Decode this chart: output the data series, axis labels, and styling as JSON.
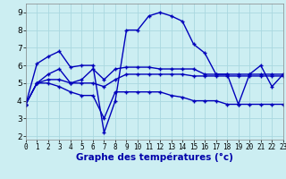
{
  "bg_color": "#cceef2",
  "grid_color": "#aad8e0",
  "line_color": "#0000bb",
  "xlabel": "Graphe des températures (°c)",
  "ylim": [
    1.8,
    9.5
  ],
  "xlim": [
    0,
    23
  ],
  "yticks": [
    2,
    3,
    4,
    5,
    6,
    7,
    8,
    9
  ],
  "xticks": [
    0,
    1,
    2,
    3,
    4,
    5,
    6,
    7,
    8,
    9,
    10,
    11,
    12,
    13,
    14,
    15,
    16,
    17,
    18,
    19,
    20,
    21,
    22,
    23
  ],
  "curve1_x": [
    0,
    1,
    2,
    3,
    4,
    5,
    6,
    7,
    8,
    9,
    10,
    11,
    12,
    13,
    14,
    15,
    16,
    17,
    18,
    19,
    20,
    21,
    22,
    23
  ],
  "curve1_y": [
    3.8,
    6.1,
    6.5,
    6.8,
    5.9,
    6.0,
    6.0,
    2.2,
    4.0,
    8.0,
    8.0,
    8.8,
    9.0,
    8.8,
    8.5,
    7.2,
    6.7,
    5.5,
    5.5,
    3.8,
    5.5,
    6.0,
    4.8,
    5.5
  ],
  "curve2_x": [
    0,
    1,
    2,
    3,
    4,
    5,
    6,
    7,
    8,
    9,
    10,
    11,
    12,
    13,
    14,
    15,
    16,
    17,
    18,
    19,
    20,
    21,
    22,
    23
  ],
  "curve2_y": [
    3.8,
    5.0,
    5.5,
    5.8,
    5.0,
    5.2,
    5.8,
    5.2,
    5.8,
    5.9,
    5.9,
    5.9,
    5.8,
    5.8,
    5.8,
    5.8,
    5.5,
    5.5,
    5.5,
    5.5,
    5.5,
    5.5,
    5.5,
    5.5
  ],
  "curve3_x": [
    0,
    1,
    2,
    3,
    4,
    5,
    6,
    7,
    8,
    9,
    10,
    11,
    12,
    13,
    14,
    15,
    16,
    17,
    18,
    19,
    20,
    21,
    22,
    23
  ],
  "curve3_y": [
    3.8,
    5.0,
    5.2,
    5.2,
    5.0,
    5.0,
    5.0,
    4.8,
    5.2,
    5.5,
    5.5,
    5.5,
    5.5,
    5.5,
    5.5,
    5.4,
    5.4,
    5.4,
    5.4,
    5.4,
    5.4,
    5.4,
    5.4,
    5.4
  ],
  "curve4_x": [
    0,
    1,
    2,
    3,
    4,
    5,
    6,
    7,
    8,
    9,
    10,
    11,
    12,
    13,
    14,
    15,
    16,
    17,
    18,
    19,
    20,
    21,
    22,
    23
  ],
  "curve4_y": [
    3.8,
    5.0,
    5.0,
    4.8,
    4.5,
    4.3,
    4.3,
    3.0,
    4.5,
    4.5,
    4.5,
    4.5,
    4.5,
    4.3,
    4.2,
    4.0,
    4.0,
    4.0,
    3.8,
    3.8,
    3.8,
    3.8,
    3.8,
    3.8
  ]
}
